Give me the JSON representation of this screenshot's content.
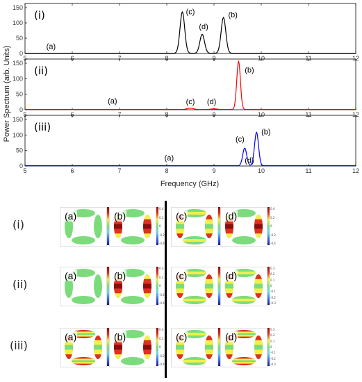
{
  "chart_data": {
    "type": "line",
    "ylabel": "Power Spectrum (arb. Units)",
    "xlabel": "Frequency (GHz)",
    "xlim": [
      5,
      12
    ],
    "x_ticks": [
      "5",
      "6",
      "7",
      "8",
      "9",
      "10",
      "11",
      "12"
    ],
    "y_ticks": [
      "0",
      "50",
      "100",
      "150"
    ],
    "panels": [
      {
        "label": "(i)",
        "color": "#000000",
        "ylim": [
          0,
          150
        ],
        "peaks": [
          {
            "x": 8.33,
            "y": 135,
            "width": 0.07
          },
          {
            "x": 8.75,
            "y": 62,
            "width": 0.07
          },
          {
            "x": 9.2,
            "y": 117,
            "width": 0.07
          }
        ],
        "annotations": [
          {
            "text": "(a)",
            "x": 5.55,
            "y": 15
          },
          {
            "text": "(c)",
            "x": 8.5,
            "y": 128
          },
          {
            "text": "(d)",
            "x": 8.78,
            "y": 80
          },
          {
            "text": "(b)",
            "x": 9.4,
            "y": 118
          }
        ]
      },
      {
        "label": "(ii)",
        "color": "#ff0000",
        "ylim": [
          0,
          150
        ],
        "peaks": [
          {
            "x": 8.5,
            "y": 4,
            "width": 0.1
          },
          {
            "x": 9.0,
            "y": 2,
            "width": 0.1
          },
          {
            "x": 9.52,
            "y": 155,
            "width": 0.055
          }
        ],
        "annotations": [
          {
            "text": "(a)",
            "x": 6.85,
            "y": 20
          },
          {
            "text": "(c)",
            "x": 8.5,
            "y": 18
          },
          {
            "text": "(d)",
            "x": 8.95,
            "y": 18
          },
          {
            "text": "(b)",
            "x": 9.75,
            "y": 120
          }
        ]
      },
      {
        "label": "(iii)",
        "color": "#0000ff",
        "ylim": [
          0,
          150
        ],
        "peaks": [
          {
            "x": 9.65,
            "y": 57,
            "width": 0.06
          },
          {
            "x": 9.9,
            "y": 108,
            "width": 0.06
          }
        ],
        "annotations": [
          {
            "text": "(a)",
            "x": 8.05,
            "y": 18
          },
          {
            "text": "(c)",
            "x": 9.55,
            "y": 78
          },
          {
            "text": "(d)",
            "x": 9.75,
            "y": 10
          },
          {
            "text": "(b)",
            "x": 10.1,
            "y": 102
          }
        ]
      }
    ]
  },
  "mode_maps": {
    "rows": [
      {
        "label": "(i)",
        "cells": [
          {
            "tag": "(a)",
            "pattern": "uniform",
            "cbar": [
              "0.4",
              "0.2",
              "0",
              "-0.2",
              "-0.4"
            ]
          },
          {
            "tag": "(b)",
            "pattern": "bands",
            "cbar": [
              "0.4",
              "0.2",
              "0",
              "-0.2",
              "-0.4"
            ]
          },
          {
            "tag": "(c)",
            "pattern": "edges",
            "cbar": [
              "0.5",
              "0",
              "-0.5"
            ]
          },
          {
            "tag": "(d)",
            "pattern": "bands",
            "cbar": [
              "0.4",
              "0.2",
              "0",
              "-0.2",
              "-0.4"
            ]
          }
        ]
      },
      {
        "label": "(ii)",
        "cells": [
          {
            "tag": "(a)",
            "pattern": "uniform",
            "cbar": [
              "0.4",
              "0.2",
              "0",
              "-0.2",
              "-0.4"
            ]
          },
          {
            "tag": "(b)",
            "pattern": "bands",
            "cbar": [
              "0.4",
              "0.2",
              "0",
              "-0.2",
              "-0.4"
            ]
          },
          {
            "tag": "(c)",
            "pattern": "edges",
            "cbar": [
              "0.05",
              "0",
              "-0.05",
              "-0.1"
            ]
          },
          {
            "tag": "(d)",
            "pattern": "edges",
            "cbar": [
              "0.3",
              "0.2",
              "0.1",
              "0",
              "-0.1",
              "-0.2",
              "-0.3"
            ]
          }
        ]
      },
      {
        "label": "(iii)",
        "cells": [
          {
            "tag": "(a)",
            "pattern": "corners",
            "cbar": [
              "0.4",
              "0.2",
              "0",
              "-0.2",
              "-0.4"
            ]
          },
          {
            "tag": "(b)",
            "pattern": "bands",
            "cbar": [
              "0.4",
              "0.2",
              "0",
              "-0.2",
              "-0.4"
            ]
          },
          {
            "tag": "(c)",
            "pattern": "edges",
            "cbar": [
              "0.3",
              "0.2",
              "0.1",
              "0",
              "-0.1",
              "-0.2",
              "-0.3"
            ]
          },
          {
            "tag": "(d)",
            "pattern": "corners",
            "cbar": [
              "0.3",
              "0.2",
              "0.1",
              "0",
              "-0.1",
              "-0.2",
              "-0.3"
            ]
          }
        ]
      }
    ]
  }
}
